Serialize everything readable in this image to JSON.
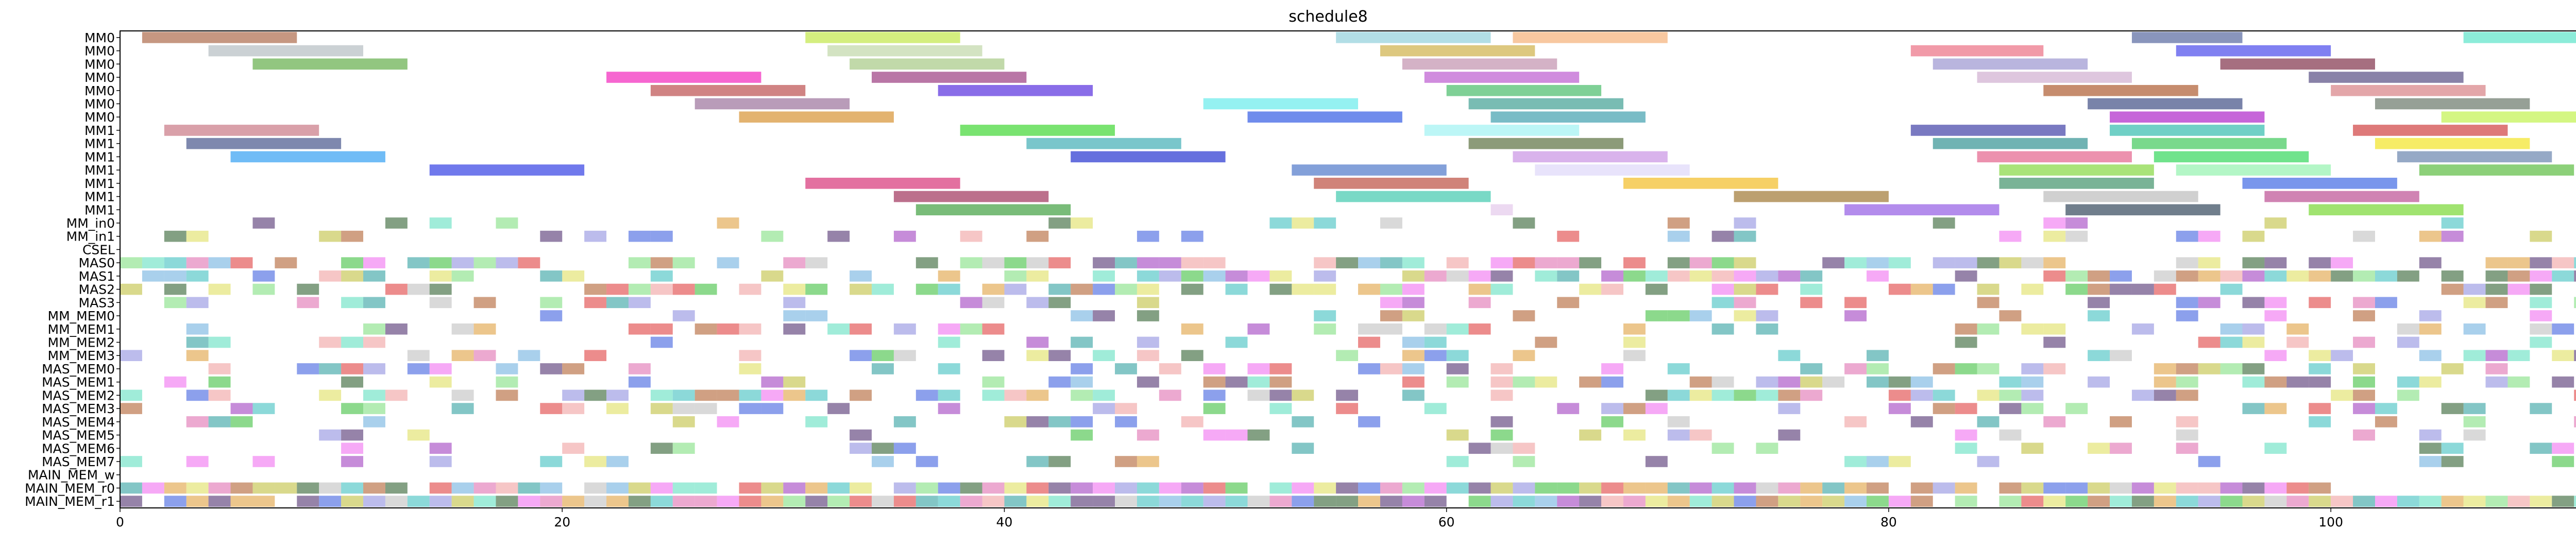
{
  "chart_data": {
    "type": "gantt",
    "title": "schedule8",
    "xlabel": "",
    "ylabel": "",
    "xlim": [
      0,
      113
    ],
    "xticks": [
      0,
      20,
      40,
      60,
      80,
      100
    ],
    "grid": false,
    "legend": "none",
    "rows": [
      "MM0",
      "MM0",
      "MM0",
      "MM0",
      "MM0",
      "MM0",
      "MM0",
      "MM1",
      "MM1",
      "MM1",
      "MM1",
      "MM1",
      "MM1",
      "MM1",
      "MM_in0",
      "MM_in1",
      "CSEL",
      "MAS0",
      "MAS1",
      "MAS2",
      "MAS3",
      "MM_MEM0",
      "MM_MEM1",
      "MM_MEM2",
      "MM_MEM3",
      "MAS_MEM0",
      "MAS_MEM1",
      "MAS_MEM2",
      "MAS_MEM3",
      "MAS_MEM4",
      "MAS_MEM5",
      "MAS_MEM6",
      "MAS_MEM7",
      "MAIN_MEM_w",
      "MAIN_MEM_r0",
      "MAIN_MEM_r1"
    ],
    "bars": [
      {
        "row": 0,
        "start": 1,
        "end": 8,
        "color": "#a0522d"
      },
      {
        "row": 0,
        "start": 31,
        "end": 38,
        "color": "#b8e22a"
      },
      {
        "row": 0,
        "start": 55,
        "end": 62,
        "color": "#7fc8d6"
      },
      {
        "row": 0,
        "start": 63,
        "end": 70,
        "color": "#f4a460"
      },
      {
        "row": 0,
        "start": 91,
        "end": 96,
        "color": "#3b4f8f"
      },
      {
        "row": 0,
        "start": 106,
        "end": 113,
        "color": "#40e0c0"
      },
      {
        "row": 1,
        "start": 4,
        "end": 11,
        "color": "#a9b2b8"
      },
      {
        "row": 1,
        "start": 32,
        "end": 39,
        "color": "#b5d19a"
      },
      {
        "row": 1,
        "start": 57,
        "end": 64,
        "color": "#c7a42a"
      },
      {
        "row": 1,
        "start": 81,
        "end": 87,
        "color": "#e8566e"
      },
      {
        "row": 1,
        "start": 93,
        "end": 100,
        "color": "#2b2be8"
      },
      {
        "row": 2,
        "start": 6,
        "end": 13,
        "color": "#4aa02c"
      },
      {
        "row": 2,
        "start": 33,
        "end": 40,
        "color": "#98bf70"
      },
      {
        "row": 2,
        "start": 58,
        "end": 65,
        "color": "#b87fa0"
      },
      {
        "row": 2,
        "start": 82,
        "end": 89,
        "color": "#8a84c8"
      },
      {
        "row": 2,
        "start": 95,
        "end": 102,
        "color": "#6b0f2b"
      },
      {
        "row": 3,
        "start": 22,
        "end": 29,
        "color": "#f000b0"
      },
      {
        "row": 3,
        "start": 34,
        "end": 41,
        "color": "#8b1a6b"
      },
      {
        "row": 3,
        "start": 59,
        "end": 66,
        "color": "#b040c8"
      },
      {
        "row": 3,
        "start": 84,
        "end": 91,
        "color": "#c8a0c8"
      },
      {
        "row": 3,
        "start": 99,
        "end": 106,
        "color": "#3b2f6e"
      },
      {
        "row": 4,
        "start": 24,
        "end": 31,
        "color": "#b03030"
      },
      {
        "row": 4,
        "start": 37,
        "end": 44,
        "color": "#3b0bd8"
      },
      {
        "row": 4,
        "start": 60,
        "end": 67,
        "color": "#2ab050"
      },
      {
        "row": 4,
        "start": 87,
        "end": 94,
        "color": "#a0400e"
      },
      {
        "row": 4,
        "start": 100,
        "end": 107,
        "color": "#d06a70"
      },
      {
        "row": 5,
        "start": 26,
        "end": 33,
        "color": "#8b5a8a"
      },
      {
        "row": 5,
        "start": 49,
        "end": 56,
        "color": "#4fe8e8"
      },
      {
        "row": 5,
        "start": 61,
        "end": 68,
        "color": "#1f9080"
      },
      {
        "row": 5,
        "start": 89,
        "end": 96,
        "color": "#203070"
      },
      {
        "row": 5,
        "start": 102,
        "end": 109,
        "color": "#506050"
      },
      {
        "row": 6,
        "start": 28,
        "end": 35,
        "color": "#d08010"
      },
      {
        "row": 6,
        "start": 51,
        "end": 58,
        "color": "#1040e0"
      },
      {
        "row": 6,
        "start": 62,
        "end": 69,
        "color": "#2090a0"
      },
      {
        "row": 6,
        "start": 90,
        "end": 97,
        "color": "#a000c0"
      },
      {
        "row": 6,
        "start": 105,
        "end": 112,
        "color": "#b8f030"
      },
      {
        "row": 7,
        "start": 2,
        "end": 9,
        "color": "#c06070"
      },
      {
        "row": 7,
        "start": 38,
        "end": 45,
        "color": "#20d010"
      },
      {
        "row": 7,
        "start": 59,
        "end": 66,
        "color": "#90f0f0"
      },
      {
        "row": 7,
        "start": 81,
        "end": 88,
        "color": "#202098"
      },
      {
        "row": 7,
        "start": 90,
        "end": 97,
        "color": "#10b0a0"
      },
      {
        "row": 7,
        "start": 101,
        "end": 108,
        "color": "#c82020"
      },
      {
        "row": 8,
        "start": 3,
        "end": 10,
        "color": "#283878"
      },
      {
        "row": 8,
        "start": 41,
        "end": 48,
        "color": "#20a0a8"
      },
      {
        "row": 8,
        "start": 61,
        "end": 68,
        "color": "#405820"
      },
      {
        "row": 8,
        "start": 82,
        "end": 89,
        "color": "#108080"
      },
      {
        "row": 8,
        "start": 91,
        "end": 98,
        "color": "#20c040"
      },
      {
        "row": 8,
        "start": 102,
        "end": 109,
        "color": "#f0e000"
      },
      {
        "row": 9,
        "start": 5,
        "end": 12,
        "color": "#1090f0"
      },
      {
        "row": 9,
        "start": 43,
        "end": 50,
        "color": "#0010c8"
      },
      {
        "row": 9,
        "start": 63,
        "end": 70,
        "color": "#c080e0"
      },
      {
        "row": 9,
        "start": 84,
        "end": 91,
        "color": "#e04878"
      },
      {
        "row": 9,
        "start": 92,
        "end": 99,
        "color": "#10d040"
      },
      {
        "row": 9,
        "start": 103,
        "end": 110,
        "color": "#5070a0"
      },
      {
        "row": 10,
        "start": 14,
        "end": 21,
        "color": "#1020e0"
      },
      {
        "row": 10,
        "start": 53,
        "end": 60,
        "color": "#3060c0"
      },
      {
        "row": 10,
        "start": 64,
        "end": 71,
        "color": "#d8d0f8"
      },
      {
        "row": 10,
        "start": 85,
        "end": 92,
        "color": "#70d020"
      },
      {
        "row": 10,
        "start": 93,
        "end": 100,
        "color": "#80f0a0"
      },
      {
        "row": 10,
        "start": 104,
        "end": 111,
        "color": "#40b020"
      },
      {
        "row": 11,
        "start": 31,
        "end": 38,
        "color": "#d01060"
      },
      {
        "row": 11,
        "start": 54,
        "end": 61,
        "color": "#b03020"
      },
      {
        "row": 11,
        "start": 68,
        "end": 75,
        "color": "#f0b000"
      },
      {
        "row": 11,
        "start": 85,
        "end": 92,
        "color": "#208050"
      },
      {
        "row": 11,
        "start": 96,
        "end": 103,
        "color": "#2050e0"
      },
      {
        "row": 12,
        "start": 35,
        "end": 42,
        "color": "#901040"
      },
      {
        "row": 12,
        "start": 55,
        "end": 62,
        "color": "#20c0a0"
      },
      {
        "row": 12,
        "start": 73,
        "end": 80,
        "color": "#906010"
      },
      {
        "row": 12,
        "start": 87,
        "end": 94,
        "color": "#b0b0b0"
      },
      {
        "row": 12,
        "start": 97,
        "end": 104,
        "color": "#b03080"
      },
      {
        "row": 13,
        "start": 36,
        "end": 43,
        "color": "#209020"
      },
      {
        "row": 13,
        "start": 62,
        "end": 63,
        "color": "#e0c0e8"
      },
      {
        "row": 13,
        "start": 78,
        "end": 85,
        "color": "#8040e0"
      },
      {
        "row": 13,
        "start": 88,
        "end": 95,
        "color": "#102840"
      },
      {
        "row": 13,
        "start": 99,
        "end": 106,
        "color": "#60d010"
      }
    ]
  }
}
